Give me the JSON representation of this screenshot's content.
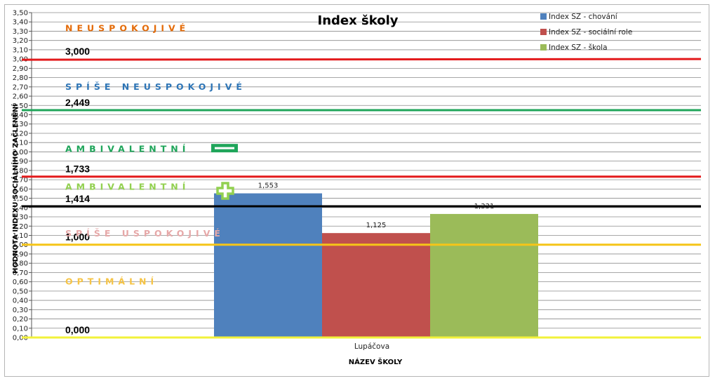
{
  "chart_data": {
    "type": "bar",
    "title": "Index školy",
    "xlabel": "NÁZEV ŠKOLY",
    "ylabel": "HODNOTA INDEXU SOCIÁLNÍHO ZAČLENĚNÍ",
    "ylim": [
      0,
      3.5
    ],
    "ytick_step": 0.1,
    "ytick_labels": [
      "0,00",
      "0,10",
      "0,20",
      "0,30",
      "0,40",
      "0,50",
      "0,60",
      "0,70",
      "0,80",
      "0,90",
      "1,00",
      "1,10",
      "1,20",
      "1,30",
      "1,40",
      "1,50",
      "1,60",
      "1,70",
      "1,80",
      "1,90",
      "2,00",
      "2,10",
      "2,20",
      "2,30",
      "2,40",
      "2,50",
      "2,60",
      "2,70",
      "2,80",
      "2,90",
      "3,00",
      "3,10",
      "3,20",
      "3,30",
      "3,40",
      "3,50"
    ],
    "grid": true,
    "legend_position": "top-right",
    "categories": [
      "Lupáčova"
    ],
    "series": [
      {
        "name": "Index SZ - chování",
        "values": [
          1.553
        ],
        "labels": [
          "1,553"
        ],
        "color": "#4f81bd"
      },
      {
        "name": "Index SZ - sociální role",
        "values": [
          1.125
        ],
        "labels": [
          "1,125"
        ],
        "color": "#c0504d"
      },
      {
        "name": "Index SZ - škola",
        "values": [
          1.331
        ],
        "labels": [
          "1,331"
        ],
        "color": "#9bbb59"
      }
    ],
    "thresholds": [
      {
        "value": 3.0,
        "label": "3,000",
        "color": "#e31a1c"
      },
      {
        "value": 2.449,
        "label": "2,449",
        "color": "#1fa55a"
      },
      {
        "value": 1.733,
        "label": "1,733",
        "color": "#e31a1c"
      },
      {
        "value": 1.414,
        "label": "1,414",
        "color": "#000000"
      },
      {
        "value": 1.0,
        "label": "1,000",
        "color": "#f5c518"
      },
      {
        "value": 0.0,
        "label": "0,000",
        "color": "#f2f23a"
      }
    ],
    "zones": [
      {
        "text": "NEUSPOKOJIVÉ",
        "at": 3.33,
        "color": "#e46c0a"
      },
      {
        "text": "SPÍŠE NEUSPOKOJIVÉ",
        "at": 2.7,
        "color": "#2e75b6"
      },
      {
        "text": "AMBIVALENTNÍ",
        "at": 2.03,
        "color": "#1fa55a"
      },
      {
        "text": "AMBIVALENTNÍ",
        "at": 1.62,
        "color": "#92d050"
      },
      {
        "text": "SPÍŠE USPOKOJIVÉ",
        "at": 1.12,
        "color": "#e6a8a8"
      },
      {
        "text": "OPTIMÁLNÍ",
        "at": 0.6,
        "color": "#f6c445"
      }
    ],
    "symbols": [
      {
        "name": "minus-icon",
        "at": 2.04,
        "color": "#1fa55a"
      },
      {
        "name": "plus-icon",
        "at": 1.58,
        "color": "#92d050"
      }
    ]
  }
}
